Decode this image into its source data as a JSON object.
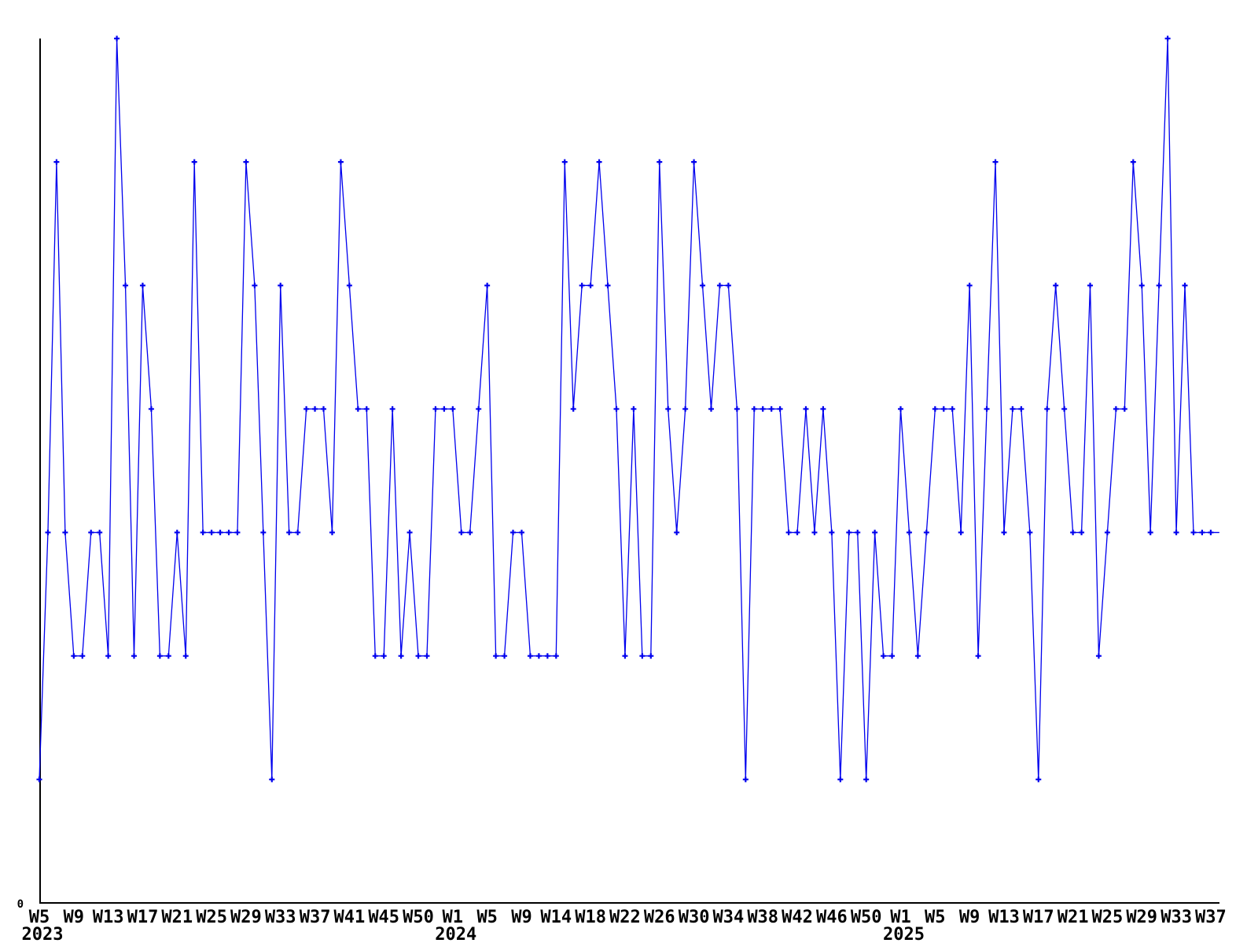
{
  "chart_data": {
    "type": "line",
    "title": "",
    "legend": null,
    "grid": false,
    "series_color": "#0000ee",
    "axis_color": "#000000",
    "y_axis": {
      "zero_label": "0",
      "min": 0,
      "max": 7
    },
    "x_axis": {
      "unit": "ISO week",
      "ticks": [
        {
          "label": "W5",
          "index": 0,
          "year": "2023"
        },
        {
          "label": "W9",
          "index": 4
        },
        {
          "label": "W13",
          "index": 8
        },
        {
          "label": "W17",
          "index": 12
        },
        {
          "label": "W21",
          "index": 16
        },
        {
          "label": "W25",
          "index": 20
        },
        {
          "label": "W29",
          "index": 24
        },
        {
          "label": "W33",
          "index": 28
        },
        {
          "label": "W37",
          "index": 32
        },
        {
          "label": "W41",
          "index": 36
        },
        {
          "label": "W45",
          "index": 40
        },
        {
          "label": "W50",
          "index": 44
        },
        {
          "label": "W1",
          "index": 48,
          "year": "2024"
        },
        {
          "label": "W5",
          "index": 52
        },
        {
          "label": "W9",
          "index": 56
        },
        {
          "label": "W14",
          "index": 60
        },
        {
          "label": "W18",
          "index": 64
        },
        {
          "label": "W22",
          "index": 68
        },
        {
          "label": "W26",
          "index": 72
        },
        {
          "label": "W30",
          "index": 76
        },
        {
          "label": "W34",
          "index": 80
        },
        {
          "label": "W38",
          "index": 84
        },
        {
          "label": "W42",
          "index": 88
        },
        {
          "label": "W46",
          "index": 92
        },
        {
          "label": "W50",
          "index": 96
        },
        {
          "label": "W1",
          "index": 100,
          "year": "2025"
        },
        {
          "label": "W5",
          "index": 104
        },
        {
          "label": "W9",
          "index": 108
        },
        {
          "label": "W13",
          "index": 112
        },
        {
          "label": "W17",
          "index": 116
        },
        {
          "label": "W21",
          "index": 120
        },
        {
          "label": "W25",
          "index": 124
        },
        {
          "label": "W29",
          "index": 128
        },
        {
          "label": "W33",
          "index": 132
        },
        {
          "label": "W37",
          "index": 136
        }
      ]
    },
    "values": [
      1,
      3,
      6,
      3,
      2,
      2,
      3,
      3,
      2,
      7,
      5,
      2,
      5,
      4,
      2,
      2,
      3,
      2,
      6,
      3,
      3,
      3,
      3,
      3,
      6,
      5,
      3,
      1,
      5,
      3,
      3,
      4,
      4,
      4,
      3,
      6,
      5,
      4,
      4,
      2,
      2,
      4,
      2,
      3,
      2,
      2,
      4,
      4,
      4,
      3,
      3,
      4,
      5,
      2,
      2,
      3,
      3,
      2,
      2,
      2,
      2,
      6,
      4,
      5,
      5,
      6,
      5,
      4,
      2,
      4,
      2,
      2,
      6,
      4,
      3,
      4,
      6,
      5,
      4,
      5,
      5,
      4,
      1,
      4,
      4,
      4,
      4,
      3,
      3,
      4,
      3,
      4,
      3,
      1,
      3,
      3,
      1,
      3,
      2,
      2,
      4,
      3,
      2,
      3,
      4,
      4,
      4,
      3,
      5,
      2,
      4,
      6,
      3,
      4,
      4,
      3,
      1,
      4,
      5,
      4,
      3,
      3,
      5,
      2,
      3,
      4,
      4,
      6,
      5,
      3,
      5,
      7,
      3,
      5,
      3,
      3,
      3,
      3
    ],
    "last_point_has_marker": false
  }
}
